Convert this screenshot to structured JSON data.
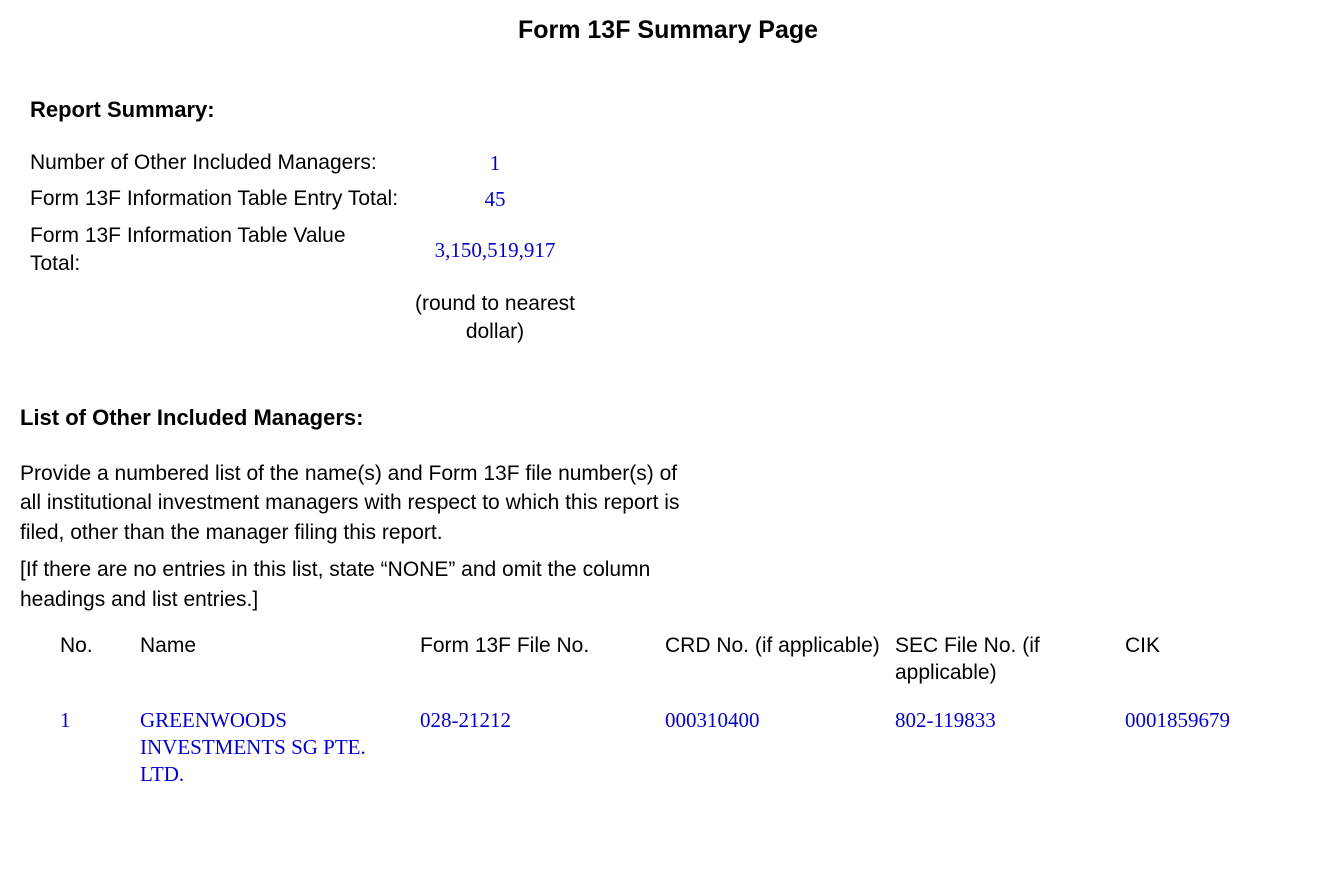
{
  "page_title": "Form 13F Summary Page",
  "report_summary": {
    "heading": "Report Summary:",
    "rows": [
      {
        "label": "Number of Other Included Managers:",
        "value": "1"
      },
      {
        "label": "Form 13F Information Table Entry Total:",
        "value": "45"
      },
      {
        "label": "Form 13F Information Table Value Total:",
        "value": "3,150,519,917"
      }
    ],
    "note": "(round to nearest dollar)"
  },
  "managers_list": {
    "heading": "List of Other Included Managers:",
    "instruction_1": "Provide a numbered list of the name(s) and Form 13F file number(s) of all institutional investment managers with respect to which this report is filed, other than the manager filing this report.",
    "instruction_2": "[If there are no entries in this list, state “NONE” and omit the column headings and list entries.]",
    "columns": {
      "no": "No.",
      "name": "Name",
      "file": "Form 13F File No.",
      "crd": "CRD No. (if applicable)",
      "sec": "SEC File No. (if applicable)",
      "cik": "CIK"
    },
    "rows": [
      {
        "no": "1",
        "name": "GREENWOODS INVESTMENTS SG PTE. LTD.",
        "file": "028-21212",
        "crd": "000310400",
        "sec": "802-119833",
        "cik": "0001859679"
      }
    ]
  },
  "colors": {
    "text": "#000000",
    "value": "#0000cd",
    "background": "#ffffff"
  }
}
